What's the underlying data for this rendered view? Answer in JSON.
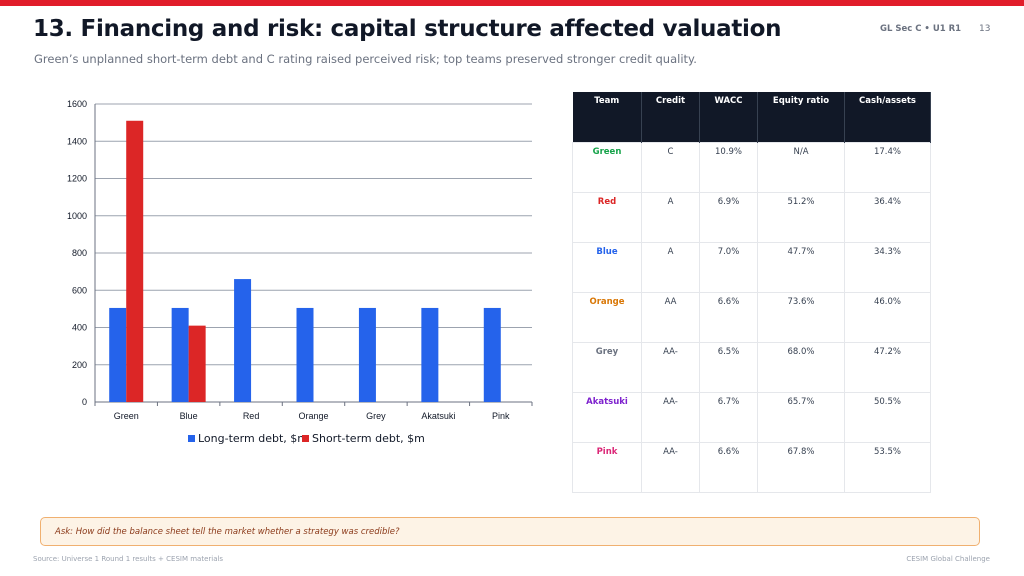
{
  "header": {
    "title": "13. Financing and risk: capital structure affected valuation",
    "subtitle": "Green’s unplanned short-term debt and C rating raised perceived risk; top teams preserved stronger credit quality.",
    "meta": "GL Sec C • U1 R1",
    "page_number": "13"
  },
  "colors": {
    "accent_red": "#e11d2a",
    "long_term": "#2563eb",
    "short_term": "#dc2626",
    "table_header": "#111827"
  },
  "chart_data": {
    "type": "bar",
    "categories": [
      "Green",
      "Blue",
      "Red",
      "Orange",
      "Grey",
      "Akatsuki",
      "Pink"
    ],
    "series": [
      {
        "name": "Long-term debt, $m",
        "values": [
          505,
          505,
          660,
          505,
          505,
          505,
          505
        ],
        "color": "#2563eb"
      },
      {
        "name": "Short-term debt, $m",
        "values": [
          1510,
          410,
          0,
          0,
          0,
          0,
          0
        ],
        "color": "#dc2626"
      }
    ],
    "ylim": [
      0,
      1600
    ],
    "yticks": [
      "0",
      "200",
      "400",
      "600",
      "800",
      "1000",
      "1200",
      "1400",
      "1600"
    ],
    "grid": true,
    "legend": "bottom"
  },
  "table": {
    "columns": [
      "Team",
      "Credit",
      "WACC",
      "Equity ratio",
      "Cash/assets"
    ],
    "rows": [
      {
        "team": "Green",
        "color": "#16a34a",
        "cells": [
          "C",
          "10.9%",
          "N/A",
          "17.4%"
        ]
      },
      {
        "team": "Red",
        "color": "#dc2626",
        "cells": [
          "A",
          "6.9%",
          "51.2%",
          "36.4%"
        ]
      },
      {
        "team": "Blue",
        "color": "#2563eb",
        "cells": [
          "A",
          "7.0%",
          "47.7%",
          "34.3%"
        ]
      },
      {
        "team": "Orange",
        "color": "#d97706",
        "cells": [
          "AA",
          "6.6%",
          "73.6%",
          "46.0%"
        ]
      },
      {
        "team": "Grey",
        "color": "#6b7280",
        "cells": [
          "AA-",
          "6.5%",
          "68.0%",
          "47.2%"
        ]
      },
      {
        "team": "Akatsuki",
        "color": "#7e22ce",
        "cells": [
          "AA-",
          "6.7%",
          "65.7%",
          "50.5%"
        ]
      },
      {
        "team": "Pink",
        "color": "#db2777",
        "cells": [
          "AA-",
          "6.6%",
          "67.8%",
          "53.5%"
        ]
      }
    ]
  },
  "ask": "Ask: How did the balance sheet tell the market whether a strategy was credible?",
  "footer": {
    "source": "Source: Universe 1 Round 1 results + CESIM materials",
    "brand": "CESIM Global Challenge"
  }
}
